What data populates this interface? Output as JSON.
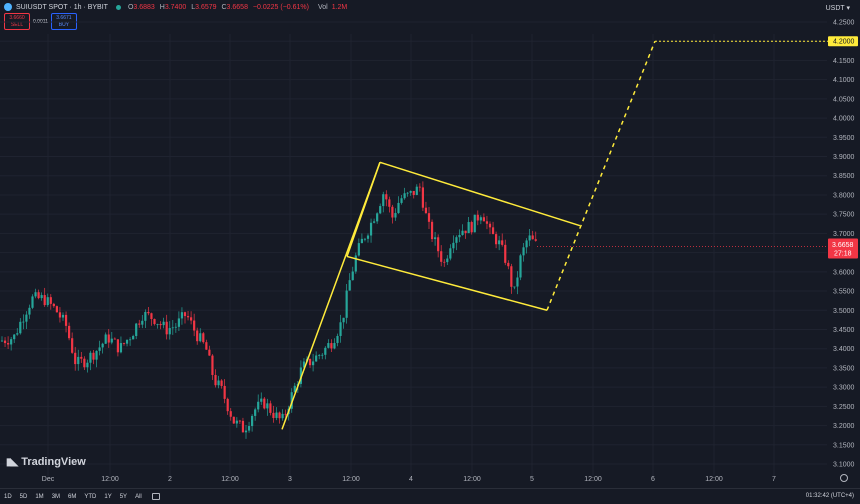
{
  "header": {
    "symbol": "SUIUSDT SPOT · 1h · BYBIT",
    "ohlc": [
      {
        "label": "O",
        "value": "3.6883"
      },
      {
        "label": "H",
        "value": "3.7400"
      },
      {
        "label": "L",
        "value": "3.6579"
      },
      {
        "label": "C",
        "value": "3.6658"
      }
    ],
    "change": "−0.0225 (−0.61%)",
    "vol_label": "Vol",
    "vol_value": "1.2M",
    "sell_price": "3.6660",
    "sell_label": "SELL",
    "spread": "0.0011",
    "buy_price": "3.6671",
    "buy_label": "BUY",
    "currency": "USDT"
  },
  "toolbar": {
    "ranges": [
      "1D",
      "5D",
      "1M",
      "3M",
      "6M",
      "YTD",
      "1Y",
      "5Y",
      "All"
    ],
    "clock": "01:32:42 (UTC+4)"
  },
  "brand": "TradingView",
  "colors": {
    "up": "#26a69a",
    "down": "#f23645",
    "pattern": "#ffeb3b",
    "bg": "#161a25"
  },
  "chart_data": {
    "type": "candlestick",
    "symbol": "SUIUSDT",
    "interval": "1h",
    "x_ticks": [
      "Dec",
      "12:00",
      "2",
      "12:00",
      "3",
      "12:00",
      "4",
      "12:00",
      "5",
      "12:00",
      "6",
      "12:00",
      "7"
    ],
    "y_ticks": [
      "4.2500",
      "4.2000",
      "4.1500",
      "4.1000",
      "4.0500",
      "4.0000",
      "3.9500",
      "3.9000",
      "3.8500",
      "3.8000",
      "3.7500",
      "3.7000",
      "3.6500",
      "3.6000",
      "3.5500",
      "3.5000",
      "3.4500",
      "3.4000",
      "3.3500",
      "3.3000",
      "3.2500",
      "3.2000",
      "3.1500",
      "3.1000"
    ],
    "y_range": [
      3.1,
      4.25
    ],
    "last_price": "3.6658",
    "countdown": "27:18",
    "target_price": "4.2000",
    "x_range": [
      0,
      860
    ],
    "close_path": [
      [
        0,
        3.42
      ],
      [
        14,
        3.43
      ],
      [
        24,
        3.49
      ],
      [
        32,
        3.53
      ],
      [
        44,
        3.53
      ],
      [
        56,
        3.5
      ],
      [
        66,
        3.46
      ],
      [
        76,
        3.36
      ],
      [
        86,
        3.37
      ],
      [
        98,
        3.4
      ],
      [
        108,
        3.43
      ],
      [
        120,
        3.4
      ],
      [
        132,
        3.44
      ],
      [
        142,
        3.49
      ],
      [
        154,
        3.48
      ],
      [
        166,
        3.45
      ],
      [
        176,
        3.46
      ],
      [
        186,
        3.49
      ],
      [
        196,
        3.44
      ],
      [
        206,
        3.4
      ],
      [
        214,
        3.32
      ],
      [
        222,
        3.29
      ],
      [
        234,
        3.21
      ],
      [
        244,
        3.19
      ],
      [
        254,
        3.24
      ],
      [
        264,
        3.26
      ],
      [
        274,
        3.23
      ],
      [
        282,
        3.21
      ],
      [
        292,
        3.28
      ],
      [
        302,
        3.35
      ],
      [
        312,
        3.37
      ],
      [
        322,
        3.39
      ],
      [
        332,
        3.42
      ],
      [
        342,
        3.47
      ],
      [
        350,
        3.58
      ],
      [
        356,
        3.64
      ],
      [
        362,
        3.68
      ],
      [
        370,
        3.72
      ],
      [
        378,
        3.77
      ],
      [
        384,
        3.81
      ],
      [
        392,
        3.74
      ],
      [
        400,
        3.79
      ],
      [
        410,
        3.8
      ],
      [
        420,
        3.82
      ],
      [
        428,
        3.72
      ],
      [
        436,
        3.67
      ],
      [
        444,
        3.62
      ],
      [
        452,
        3.69
      ],
      [
        462,
        3.71
      ],
      [
        472,
        3.72
      ],
      [
        482,
        3.76
      ],
      [
        490,
        3.7
      ],
      [
        498,
        3.68
      ],
      [
        506,
        3.63
      ],
      [
        514,
        3.54
      ],
      [
        520,
        3.63
      ],
      [
        528,
        3.69
      ],
      [
        536,
        3.67
      ]
    ],
    "pattern": {
      "flagpole": [
        [
          282,
          3.19
        ],
        [
          380,
          3.885
        ]
      ],
      "upper_line": [
        [
          380,
          3.885
        ],
        [
          580,
          3.72
        ]
      ],
      "lower_line": [
        [
          347,
          3.64
        ],
        [
          547,
          3.5
        ]
      ],
      "projection": [
        [
          547,
          3.5
        ],
        [
          655,
          4.2
        ],
        [
          830,
          4.2
        ]
      ]
    }
  }
}
